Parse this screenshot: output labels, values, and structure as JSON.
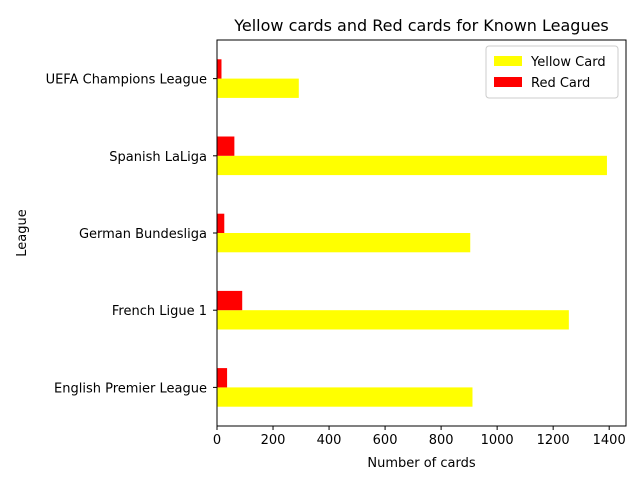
{
  "chart_data": {
    "type": "bar",
    "orientation": "horizontal",
    "title": "Yellow cards and Red cards for Known Leagues",
    "xlabel": "Number of cards",
    "ylabel": "League",
    "categories": [
      "English Premier League",
      "French Ligue 1",
      "German Bundesliga",
      "Spanish LaLiga",
      "UEFA Champions League"
    ],
    "series": [
      {
        "name": "Yellow Card",
        "color": "#ffff00",
        "values": [
          912,
          1256,
          904,
          1392,
          292
        ]
      },
      {
        "name": "Red Card",
        "color": "#ff0000",
        "values": [
          36,
          90,
          26,
          62,
          16
        ]
      }
    ],
    "xlim": [
      0,
      1460
    ],
    "xticks": [
      0,
      200,
      400,
      600,
      800,
      1000,
      1200,
      1400
    ],
    "grid": false,
    "legend_position": "top-right"
  }
}
